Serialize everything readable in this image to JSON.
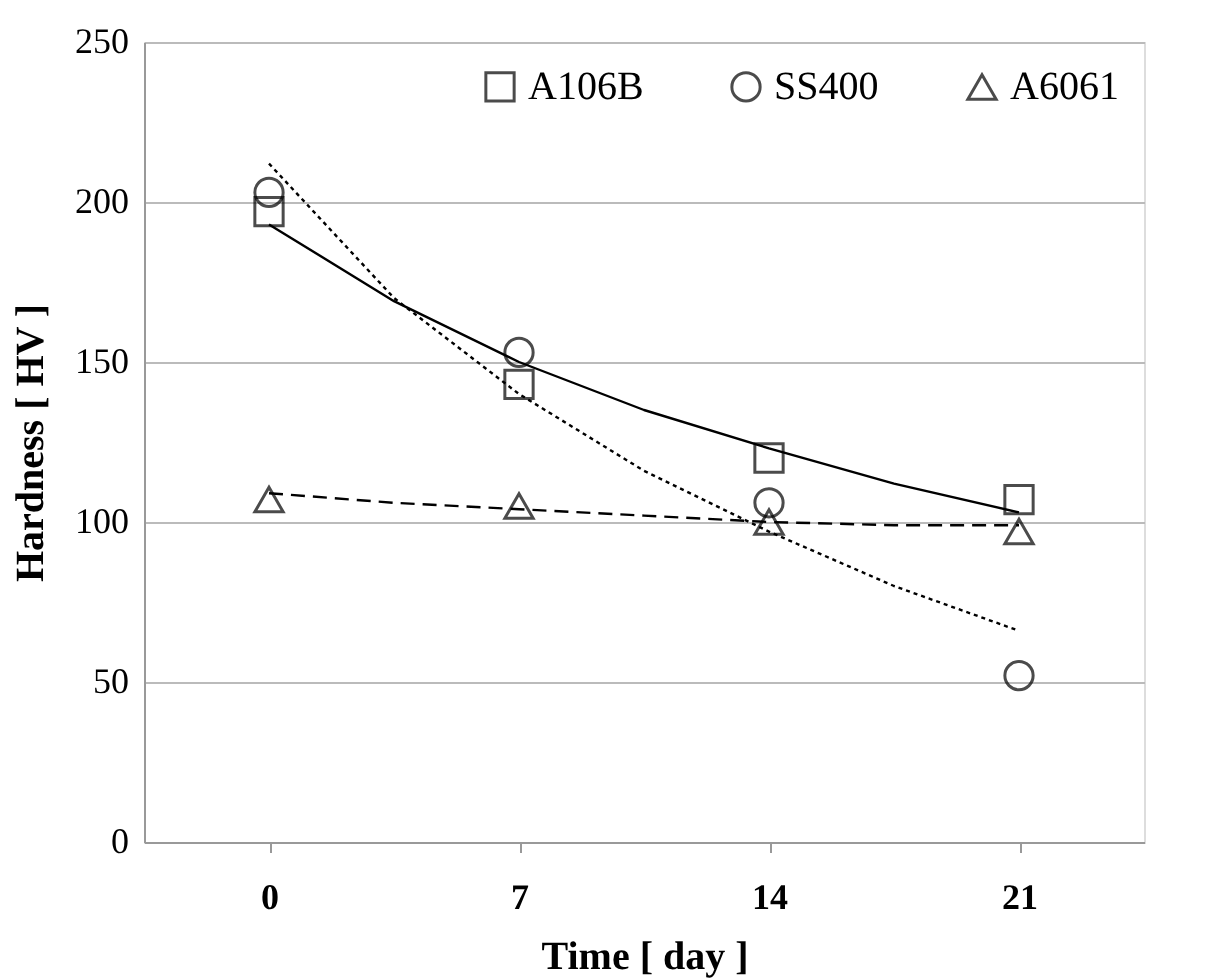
{
  "chart_data": {
    "type": "scatter",
    "xlabel": "Time [ day ]",
    "ylabel": "Hardness [ HV ]",
    "xlim": [
      -3.5,
      24.5
    ],
    "xticks": [
      0,
      7,
      14,
      21
    ],
    "ylim": [
      0,
      250
    ],
    "yticks": [
      0,
      50,
      100,
      150,
      200,
      250
    ],
    "grid": "y",
    "legend": "top right",
    "series": [
      {
        "name": "A106B",
        "marker": "square",
        "color": "#000000",
        "x": [
          0,
          7,
          14,
          21
        ],
        "values": [
          197,
          143,
          120,
          107
        ]
      },
      {
        "name": "SS400",
        "marker": "circle",
        "color": "#000000",
        "x": [
          0,
          7,
          14,
          21
        ],
        "values": [
          203,
          153,
          106,
          52
        ]
      },
      {
        "name": "A6061",
        "marker": "triangle",
        "color": "#000000",
        "x": [
          0,
          7,
          14,
          21
        ],
        "values": [
          107,
          105,
          100,
          97
        ]
      },
      {
        "type": "line",
        "line_style": "solid",
        "color": "#000000",
        "x": [
          0,
          3.5,
          7,
          10.5,
          14,
          17.5,
          21
        ],
        "values": [
          193,
          169,
          150,
          135,
          123,
          112,
          103
        ]
      },
      {
        "type": "line",
        "line_style": "dotted",
        "color": "#000000",
        "x": [
          0,
          3.5,
          7,
          10.5,
          14,
          17.5,
          21
        ],
        "values": [
          212,
          170,
          140,
          116,
          97,
          80,
          66
        ]
      },
      {
        "type": "line",
        "line_style": "dashed",
        "color": "#000000",
        "x": [
          0,
          3.5,
          7,
          10.5,
          14,
          17.5,
          21
        ],
        "values": [
          109,
          106,
          104,
          102,
          100,
          99,
          99
        ]
      }
    ]
  }
}
